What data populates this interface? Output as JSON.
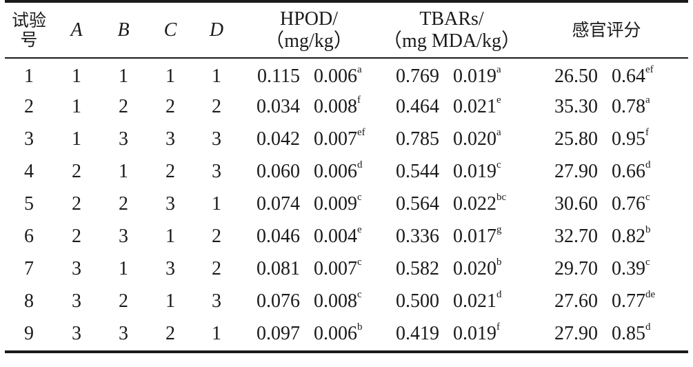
{
  "table": {
    "headers": {
      "trial_line1": "试验",
      "trial_line2": "号",
      "factor_a": "A",
      "factor_b": "B",
      "factor_c": "C",
      "factor_d": "D",
      "hpod_line1": "HPOD/",
      "hpod_line2": "（mg/kg）",
      "tbars_line1": "TBARs/",
      "tbars_line2": "（mg MDA/kg）",
      "sensory": "感官评分"
    },
    "rows": [
      {
        "no": "1",
        "a": "1",
        "b": "1",
        "c": "1",
        "d": "1",
        "hpod": "0.115",
        "hpod_sd": "0.006",
        "hpod_sig": "a",
        "tbars": "0.769",
        "tbars_sd": "0.019",
        "tbars_sig": "a",
        "score": "26.50",
        "score_sd": "0.64",
        "score_sig": "ef"
      },
      {
        "no": "2",
        "a": "1",
        "b": "2",
        "c": "2",
        "d": "2",
        "hpod": "0.034",
        "hpod_sd": "0.008",
        "hpod_sig": "f",
        "tbars": "0.464",
        "tbars_sd": "0.021",
        "tbars_sig": "e",
        "score": "35.30",
        "score_sd": "0.78",
        "score_sig": "a"
      },
      {
        "no": "3",
        "a": "1",
        "b": "3",
        "c": "3",
        "d": "3",
        "hpod": "0.042",
        "hpod_sd": "0.007",
        "hpod_sig": "ef",
        "tbars": "0.785",
        "tbars_sd": "0.020",
        "tbars_sig": "a",
        "score": "25.80",
        "score_sd": "0.95",
        "score_sig": "f"
      },
      {
        "no": "4",
        "a": "2",
        "b": "1",
        "c": "2",
        "d": "3",
        "hpod": "0.060",
        "hpod_sd": "0.006",
        "hpod_sig": "d",
        "tbars": "0.544",
        "tbars_sd": "0.019",
        "tbars_sig": "c",
        "score": "27.90",
        "score_sd": "0.66",
        "score_sig": "d"
      },
      {
        "no": "5",
        "a": "2",
        "b": "2",
        "c": "3",
        "d": "1",
        "hpod": "0.074",
        "hpod_sd": "0.009",
        "hpod_sig": "c",
        "tbars": "0.564",
        "tbars_sd": "0.022",
        "tbars_sig": "bc",
        "score": "30.60",
        "score_sd": "0.76",
        "score_sig": "c"
      },
      {
        "no": "6",
        "a": "2",
        "b": "3",
        "c": "1",
        "d": "2",
        "hpod": "0.046",
        "hpod_sd": "0.004",
        "hpod_sig": "e",
        "tbars": "0.336",
        "tbars_sd": "0.017",
        "tbars_sig": "g",
        "score": "32.70",
        "score_sd": "0.82",
        "score_sig": "b"
      },
      {
        "no": "7",
        "a": "3",
        "b": "1",
        "c": "3",
        "d": "2",
        "hpod": "0.081",
        "hpod_sd": "0.007",
        "hpod_sig": "c",
        "tbars": "0.582",
        "tbars_sd": "0.020",
        "tbars_sig": "b",
        "score": "29.70",
        "score_sd": "0.39",
        "score_sig": "c"
      },
      {
        "no": "8",
        "a": "3",
        "b": "2",
        "c": "1",
        "d": "3",
        "hpod": "0.076",
        "hpod_sd": "0.008",
        "hpod_sig": "c",
        "tbars": "0.500",
        "tbars_sd": "0.021",
        "tbars_sig": "d",
        "score": "27.60",
        "score_sd": "0.77",
        "score_sig": "de"
      },
      {
        "no": "9",
        "a": "3",
        "b": "3",
        "c": "2",
        "d": "1",
        "hpod": "0.097",
        "hpod_sd": "0.006",
        "hpod_sig": "b",
        "tbars": "0.419",
        "tbars_sd": "0.019",
        "tbars_sig": "f",
        "score": "27.90",
        "score_sd": "0.85",
        "score_sig": "d"
      }
    ]
  }
}
